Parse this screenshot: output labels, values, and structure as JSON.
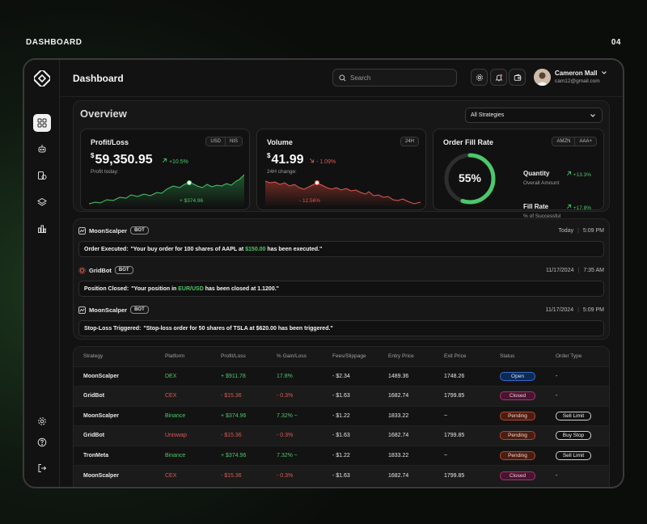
{
  "page": {
    "label": "DASHBOARD",
    "number": "04"
  },
  "colors": {
    "accent_green": "#4cc86a",
    "accent_red": "#e0594f",
    "background": "#121212"
  },
  "sidebar": {
    "icons": [
      "grid-icon",
      "bot-icon",
      "coins-icon",
      "layers-icon",
      "bar-chart-icon",
      "settings-icon",
      "help-icon",
      "logout-icon"
    ],
    "active": "grid-icon"
  },
  "header": {
    "title": "Dashboard",
    "search_placeholder": "Search",
    "user": {
      "name": "Cameron Mall",
      "email": "cam12@gmail.com"
    }
  },
  "overview": {
    "title": "Overview",
    "filter": "All Strategies",
    "profit": {
      "title": "Profit/Loss",
      "currency_options": [
        "USD",
        "NIS"
      ],
      "symbol": "$",
      "value": "59,350.95",
      "change": "+10.5%",
      "sub": "Profit today:",
      "tooltip": "+ $374.96"
    },
    "volume": {
      "title": "Volume",
      "period": "24H",
      "symbol": "$",
      "value": "41.99",
      "change": "- 1.09%",
      "sub": "24H change:",
      "tooltip": "- 12.56%"
    },
    "fill": {
      "title": "Order Fill Rate",
      "tickers": [
        "AMZN",
        "AAA+"
      ],
      "percent_label": "55%",
      "percent": 55,
      "quantity": {
        "label": "Quantity",
        "change": "+13.3%",
        "sub": "Overall Amount"
      },
      "fill_rate": {
        "label": "Fill Rate",
        "change": "+17.8%",
        "sub": "% of Successful"
      }
    }
  },
  "activity": [
    {
      "bot": "MoonScalper",
      "badge": "BOT",
      "date": "Today",
      "time": "5:09 PM",
      "label": "Order Executed:",
      "pre": "\"Your buy order for 100 shares of AAPL at ",
      "highlight": "$150.00",
      "post": " has been executed.\""
    },
    {
      "bot": "GridBot",
      "badge": "BOT",
      "date": "11/17/2024",
      "time": "7:35 AM",
      "label": "Position Closed:",
      "pre": "\"Your position in ",
      "highlight": "EUR/USD",
      "post": " has been closed at 1.1200.\""
    },
    {
      "bot": "MoonScalper",
      "badge": "BOT",
      "date": "11/17/2024",
      "time": "5:09 PM",
      "label": "Stop-Loss Triggered:",
      "pre": "\"Stop-loss order for 50 shares of TSLA at $620.00 has been triggered.\"",
      "highlight": "",
      "post": ""
    }
  ],
  "table": {
    "headers": [
      "Strategy",
      "Platform",
      "Profit/Loss",
      "% Gain/Loss",
      "Fees/Slippage",
      "Entry Price",
      "Exit Price",
      "Status",
      "Order Type"
    ],
    "rows": [
      {
        "strategy": "MoonScalper",
        "platform": "DEX",
        "pl": "+ $911.78",
        "gain": "17.8%",
        "fees": "- $2.34",
        "entry": "1489.36",
        "exit": "1748.26",
        "status": "Open",
        "order": "-"
      },
      {
        "strategy": "GridBot",
        "platform": "CEX",
        "pl": "- $15.36",
        "gain": "- 0.3%",
        "fees": "- $1.63",
        "entry": "1682.74",
        "exit": "1799.85",
        "status": "Closed",
        "order": "-"
      },
      {
        "strategy": "MoonScalper",
        "platform": "Binance",
        "pl": "+ $374.96",
        "gain": "7.32% ~",
        "fees": "- $1.22",
        "entry": "1833.22",
        "exit": "~",
        "status": "Pending",
        "order": "Sell Limit"
      },
      {
        "strategy": "GridBot",
        "platform": "Uniswap",
        "pl": "- $15.36",
        "gain": "- 0.3%",
        "fees": "- $1.63",
        "entry": "1682.74",
        "exit": "1799.85",
        "status": "Pending",
        "order": "Buy Stop"
      },
      {
        "strategy": "TronMeta",
        "platform": "Binance",
        "pl": "+ $374.96",
        "gain": "7.32% ~",
        "fees": "- $1.22",
        "entry": "1833.22",
        "exit": "~",
        "status": "Pending",
        "order": "Sell Limit"
      },
      {
        "strategy": "MoonScalper",
        "platform": "CEX",
        "pl": "- $15.36",
        "gain": "- 0.3%",
        "fees": "- $1.63",
        "entry": "1682.74",
        "exit": "1799.85",
        "status": "Closed",
        "order": "-"
      }
    ]
  }
}
